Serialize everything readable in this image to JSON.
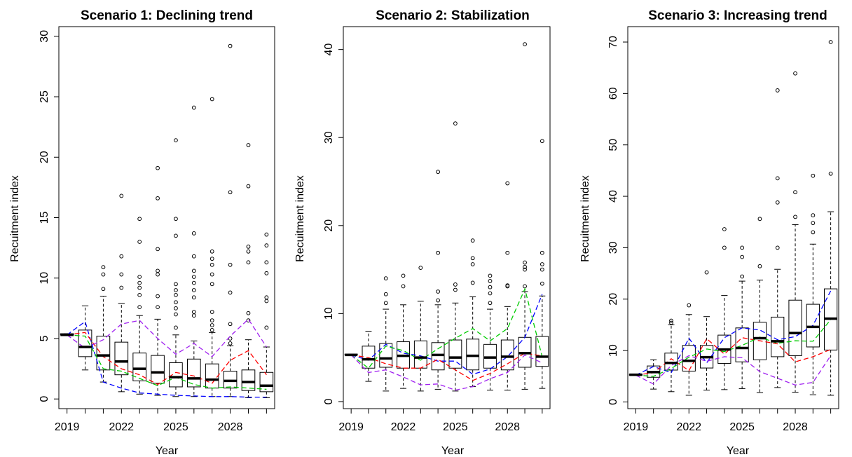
{
  "chart_data": [
    {
      "type": "boxplot",
      "title": "Scenario 1: Declining trend",
      "xlabel": "Year",
      "ylabel": "Recuitment index",
      "ylim": [
        0,
        30
      ],
      "yticks": [
        0,
        5,
        10,
        15,
        20,
        25,
        30
      ],
      "x": [
        2019,
        2020,
        2021,
        2022,
        2023,
        2024,
        2025,
        2026,
        2027,
        2028,
        2029,
        2030
      ],
      "xtick_labels": [
        "2019",
        "2022",
        "2025",
        "2028"
      ],
      "boxes": [
        {
          "min": 5.3,
          "q1": 5.3,
          "median": 5.3,
          "q3": 5.4,
          "max": 5.4,
          "outliers": []
        },
        {
          "min": 2.4,
          "q1": 3.5,
          "median": 4.3,
          "q3": 5.7,
          "max": 7.7,
          "outliers": []
        },
        {
          "min": 1.4,
          "q1": 2.4,
          "median": 3.6,
          "q3": 5.2,
          "max": 8.5,
          "outliers": [
            9.1,
            10.3,
            10.9
          ]
        },
        {
          "min": 0.6,
          "q1": 2.0,
          "median": 3.1,
          "q3": 4.7,
          "max": 7.9,
          "outliers": [
            9.2,
            10.3,
            11.8,
            16.8
          ]
        },
        {
          "min": 0.4,
          "q1": 1.5,
          "median": 2.5,
          "q3": 3.8,
          "max": 6.9,
          "outliers": [
            7.6,
            8.6,
            9.2,
            9.6,
            10.1,
            13.0,
            14.9
          ]
        },
        {
          "min": 0.3,
          "q1": 1.3,
          "median": 2.2,
          "q3": 3.6,
          "max": 6.6,
          "outliers": [
            7.6,
            8.5,
            10.3,
            10.6,
            12.4,
            16.6,
            19.1
          ]
        },
        {
          "min": 0.2,
          "q1": 1.0,
          "median": 1.8,
          "q3": 3.0,
          "max": 5.3,
          "outliers": [
            5.9,
            7.0,
            7.5,
            8.0,
            8.6,
            9.0,
            9.5,
            13.5,
            14.9,
            21.4
          ]
        },
        {
          "min": 0.2,
          "q1": 1.0,
          "median": 1.7,
          "q3": 3.3,
          "max": 4.8,
          "outliers": [
            6.9,
            7.2,
            8.4,
            9.0,
            9.6,
            10.1,
            10.6,
            11.8,
            13.7,
            24.1
          ]
        },
        {
          "min": 0.2,
          "q1": 0.9,
          "median": 1.6,
          "q3": 2.9,
          "max": 5.5,
          "outliers": [
            5.7,
            6.1,
            6.5,
            7.2,
            9.5,
            10.3,
            11.1,
            11.6,
            12.2,
            24.8
          ]
        },
        {
          "min": 0.2,
          "q1": 0.9,
          "median": 1.5,
          "q3": 2.3,
          "max": 4.4,
          "outliers": [
            4.6,
            5.0,
            6.2,
            8.8,
            11.1,
            17.1,
            29.2
          ]
        },
        {
          "min": 0.1,
          "q1": 0.7,
          "median": 1.4,
          "q3": 2.4,
          "max": 4.9,
          "outliers": [
            6.5,
            7.1,
            11.3,
            12.2,
            12.6,
            17.6,
            21.0
          ]
        },
        {
          "min": 0.1,
          "q1": 0.6,
          "median": 1.1,
          "q3": 2.2,
          "max": 4.3,
          "outliers": [
            5.9,
            8.1,
            8.4,
            10.4,
            11.3,
            12.7,
            13.6
          ]
        }
      ],
      "lines": [
        {
          "color": "#0000ff",
          "values": [
            5.3,
            6.4,
            1.4,
            0.9,
            0.5,
            0.4,
            0.3,
            0.25,
            0.2,
            0.2,
            0.15,
            0.15
          ]
        },
        {
          "color": "#ff0000",
          "values": [
            5.3,
            5.5,
            3.5,
            2.5,
            2.0,
            1.2,
            2.2,
            1.9,
            1.3,
            3.2,
            4.0,
            2.0
          ]
        },
        {
          "color": "#00cc00",
          "values": [
            5.3,
            5.2,
            2.5,
            2.3,
            1.7,
            1.1,
            1.8,
            1.2,
            0.9,
            1.0,
            0.9,
            0.8
          ]
        },
        {
          "color": "#a020f0",
          "values": [
            5.3,
            4.2,
            4.9,
            6.2,
            6.5,
            5.0,
            3.7,
            4.6,
            3.5,
            5.2,
            6.6,
            4.3
          ]
        }
      ]
    },
    {
      "type": "boxplot",
      "title": "Scenario 2: Stabilization",
      "xlabel": "Year",
      "ylabel": "Recuitment index",
      "ylim": [
        0,
        42
      ],
      "yticks": [
        0,
        10,
        20,
        30,
        40
      ],
      "x": [
        2019,
        2020,
        2021,
        2022,
        2023,
        2024,
        2025,
        2026,
        2027,
        2028,
        2029,
        2030
      ],
      "xtick_labels": [
        "2019",
        "2022",
        "2025",
        "2028"
      ],
      "boxes": [
        {
          "min": 5.3,
          "q1": 5.3,
          "median": 5.3,
          "q3": 5.4,
          "max": 5.4,
          "outliers": []
        },
        {
          "min": 2.3,
          "q1": 3.8,
          "median": 4.8,
          "q3": 6.3,
          "max": 8.0,
          "outliers": []
        },
        {
          "min": 1.2,
          "q1": 3.9,
          "median": 4.9,
          "q3": 6.6,
          "max": 10.5,
          "outliers": [
            11.2,
            12.2,
            14.0
          ]
        },
        {
          "min": 1.5,
          "q1": 3.8,
          "median": 5.2,
          "q3": 6.8,
          "max": 11.0,
          "outliers": [
            13.1,
            14.3
          ]
        },
        {
          "min": 1.2,
          "q1": 3.8,
          "median": 5.0,
          "q3": 6.9,
          "max": 11.4,
          "outliers": [
            15.2
          ]
        },
        {
          "min": 1.4,
          "q1": 3.6,
          "median": 5.3,
          "q3": 6.7,
          "max": 11.0,
          "outliers": [
            11.5,
            12.5,
            16.9,
            26.1
          ]
        },
        {
          "min": 1.2,
          "q1": 3.8,
          "median": 5.0,
          "q3": 7.0,
          "max": 11.2,
          "outliers": [
            12.7,
            13.3,
            31.6
          ]
        },
        {
          "min": 1.7,
          "q1": 3.6,
          "median": 5.2,
          "q3": 7.1,
          "max": 11.9,
          "outliers": [
            13.5,
            15.6,
            16.3,
            18.3
          ]
        },
        {
          "min": 1.3,
          "q1": 3.8,
          "median": 5.0,
          "q3": 6.5,
          "max": 10.5,
          "outliers": [
            11.2,
            12.3,
            13.0,
            13.7,
            14.3
          ]
        },
        {
          "min": 1.3,
          "q1": 3.6,
          "median": 5.1,
          "q3": 7.0,
          "max": 10.8,
          "outliers": [
            13.1,
            13.2,
            16.9,
            24.8
          ]
        },
        {
          "min": 1.4,
          "q1": 3.9,
          "median": 5.5,
          "q3": 7.3,
          "max": 12.5,
          "outliers": [
            13.1,
            15.0,
            15.3,
            15.8,
            40.6
          ]
        },
        {
          "min": 1.5,
          "q1": 4.0,
          "median": 5.1,
          "q3": 7.4,
          "max": 12.0,
          "outliers": [
            13.4,
            15.0,
            15.6,
            16.9,
            29.6
          ]
        }
      ],
      "lines": [
        {
          "color": "#0000ff",
          "values": [
            5.3,
            4.7,
            6.5,
            5.5,
            5.2,
            4.6,
            4.6,
            3.1,
            3.7,
            5.1,
            7.3,
            12.2
          ]
        },
        {
          "color": "#ff0000",
          "values": [
            5.3,
            5.0,
            4.3,
            3.8,
            3.8,
            4.8,
            3.6,
            2.4,
            3.2,
            4.3,
            5.5,
            5.2
          ]
        },
        {
          "color": "#00cc00",
          "values": [
            5.3,
            3.8,
            6.3,
            5.8,
            4.7,
            6.0,
            7.2,
            8.3,
            6.9,
            8.3,
            12.8,
            5.1
          ]
        },
        {
          "color": "#a020f0",
          "values": [
            5.3,
            3.3,
            3.6,
            2.8,
            1.9,
            2.0,
            1.3,
            1.7,
            2.6,
            3.3,
            5.3,
            4.4
          ]
        }
      ]
    },
    {
      "type": "boxplot",
      "title": "Scenario 3: Increasing trend",
      "xlabel": "Year",
      "ylabel": "Recuitment index",
      "ylim": [
        0,
        72
      ],
      "yticks": [
        0,
        10,
        20,
        30,
        40,
        50,
        60,
        70
      ],
      "x": [
        2019,
        2020,
        2021,
        2022,
        2023,
        2024,
        2025,
        2026,
        2027,
        2028,
        2029,
        2030
      ],
      "xtick_labels": [
        "2019",
        "2022",
        "2025",
        "2028"
      ],
      "boxes": [
        {
          "min": 5.2,
          "q1": 5.2,
          "median": 5.3,
          "q3": 5.4,
          "max": 5.4,
          "outliers": []
        },
        {
          "min": 2.5,
          "q1": 4.8,
          "median": 5.8,
          "q3": 7.0,
          "max": 8.2,
          "outliers": []
        },
        {
          "min": 2.0,
          "q1": 6.2,
          "median": 7.6,
          "q3": 9.5,
          "max": 15.0,
          "outliers": [
            15.4,
            15.8
          ]
        },
        {
          "min": 1.3,
          "q1": 6.0,
          "median": 8.0,
          "q3": 11.0,
          "max": 17.0,
          "outliers": [
            18.8
          ]
        },
        {
          "min": 2.3,
          "q1": 6.6,
          "median": 8.7,
          "q3": 11.0,
          "max": 16.6,
          "outliers": [
            25.2
          ]
        },
        {
          "min": 2.4,
          "q1": 7.5,
          "median": 10.2,
          "q3": 13.0,
          "max": 20.7,
          "outliers": [
            30.0,
            33.6
          ]
        },
        {
          "min": 2.6,
          "q1": 7.8,
          "median": 10.5,
          "q3": 14.4,
          "max": 23.5,
          "outliers": [
            24.4,
            28.2,
            30.0
          ]
        },
        {
          "min": 1.8,
          "q1": 8.2,
          "median": 12.4,
          "q3": 15.5,
          "max": 23.7,
          "outliers": [
            26.4,
            35.6
          ]
        },
        {
          "min": 2.8,
          "q1": 8.8,
          "median": 11.8,
          "q3": 16.5,
          "max": 25.8,
          "outliers": [
            30.0,
            38.8,
            43.5,
            60.6
          ]
        },
        {
          "min": 1.9,
          "q1": 9.0,
          "median": 13.4,
          "q3": 19.8,
          "max": 34.5,
          "outliers": [
            36.0,
            40.8,
            63.9
          ]
        },
        {
          "min": 1.4,
          "q1": 10.7,
          "median": 14.6,
          "q3": 19.0,
          "max": 30.7,
          "outliers": [
            33.0,
            34.8,
            36.3,
            44.0
          ]
        },
        {
          "min": 1.3,
          "q1": 10.1,
          "median": 16.2,
          "q3": 22.0,
          "max": 37.0,
          "outliers": [
            44.4,
            70.0
          ]
        }
      ],
      "lines": [
        {
          "color": "#0000ff",
          "values": [
            5.2,
            6.9,
            5.7,
            12.4,
            7.6,
            12.5,
            14.4,
            14.0,
            12.1,
            12.7,
            14.9,
            21.6
          ]
        },
        {
          "color": "#ff0000",
          "values": [
            5.2,
            5.7,
            8.4,
            6.1,
            12.3,
            9.3,
            12.5,
            11.9,
            11.3,
            7.8,
            8.8,
            10.2
          ]
        },
        {
          "color": "#00cc00",
          "values": [
            5.2,
            5.0,
            6.5,
            8.7,
            10.3,
            9.8,
            11.0,
            12.6,
            11.4,
            11.9,
            11.8,
            16.0
          ]
        },
        {
          "color": "#a020f0",
          "values": [
            5.2,
            3.5,
            7.1,
            9.0,
            7.9,
            8.8,
            8.6,
            5.9,
            4.6,
            3.3,
            3.8,
            9.0
          ]
        }
      ]
    }
  ]
}
